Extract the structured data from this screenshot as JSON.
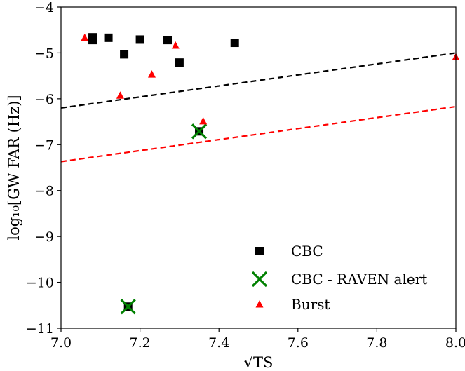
{
  "chart_data": {
    "type": "scatter",
    "title": "",
    "xlabel": "√TS",
    "ylabel": "log₁₀[GW FAR (Hz)]",
    "xlim": [
      7.0,
      8.0
    ],
    "ylim": [
      -11,
      -4
    ],
    "x_ticks": [
      7.0,
      7.2,
      7.4,
      7.6,
      7.8,
      8.0
    ],
    "x_tick_labels": [
      "7.0",
      "7.2",
      "7.4",
      "7.6",
      "7.8",
      "8.0"
    ],
    "y_ticks": [
      -11,
      -10,
      -9,
      -8,
      -7,
      -6,
      -5,
      -4
    ],
    "y_tick_labels": [
      "−11",
      "−10",
      "−9",
      "−8",
      "−7",
      "−6",
      "−5",
      "−4"
    ],
    "grid": false,
    "legend_position": "lower-right",
    "series": [
      {
        "name": "CBC",
        "marker": "square",
        "color": "#000000",
        "points": [
          {
            "x": 7.08,
            "y": -4.66
          },
          {
            "x": 7.08,
            "y": -4.72
          },
          {
            "x": 7.12,
            "y": -4.67
          },
          {
            "x": 7.16,
            "y": -5.03
          },
          {
            "x": 7.2,
            "y": -4.71
          },
          {
            "x": 7.27,
            "y": -4.72
          },
          {
            "x": 7.3,
            "y": -5.21
          },
          {
            "x": 7.44,
            "y": -4.78
          },
          {
            "x": 7.35,
            "y": -6.71
          },
          {
            "x": 7.17,
            "y": -10.53
          }
        ]
      },
      {
        "name": "CBC - RAVEN alert",
        "marker": "x",
        "color": "#008000",
        "points": [
          {
            "x": 7.35,
            "y": -6.71
          },
          {
            "x": 7.17,
            "y": -10.53
          }
        ]
      },
      {
        "name": "Burst",
        "marker": "triangle",
        "color": "#ff0000",
        "points": [
          {
            "x": 7.06,
            "y": -4.67
          },
          {
            "x": 7.15,
            "y": -5.93
          },
          {
            "x": 7.23,
            "y": -5.47
          },
          {
            "x": 7.29,
            "y": -4.84
          },
          {
            "x": 7.36,
            "y": -6.49
          },
          {
            "x": 8.0,
            "y": -5.09
          }
        ]
      }
    ],
    "lines": [
      {
        "color": "#000000",
        "style": "dashed",
        "x": [
          7.0,
          8.0
        ],
        "y": [
          -6.2,
          -5.0
        ]
      },
      {
        "color": "#ff0000",
        "style": "dashed",
        "x": [
          7.0,
          8.0
        ],
        "y": [
          -7.37,
          -6.17
        ]
      }
    ]
  }
}
